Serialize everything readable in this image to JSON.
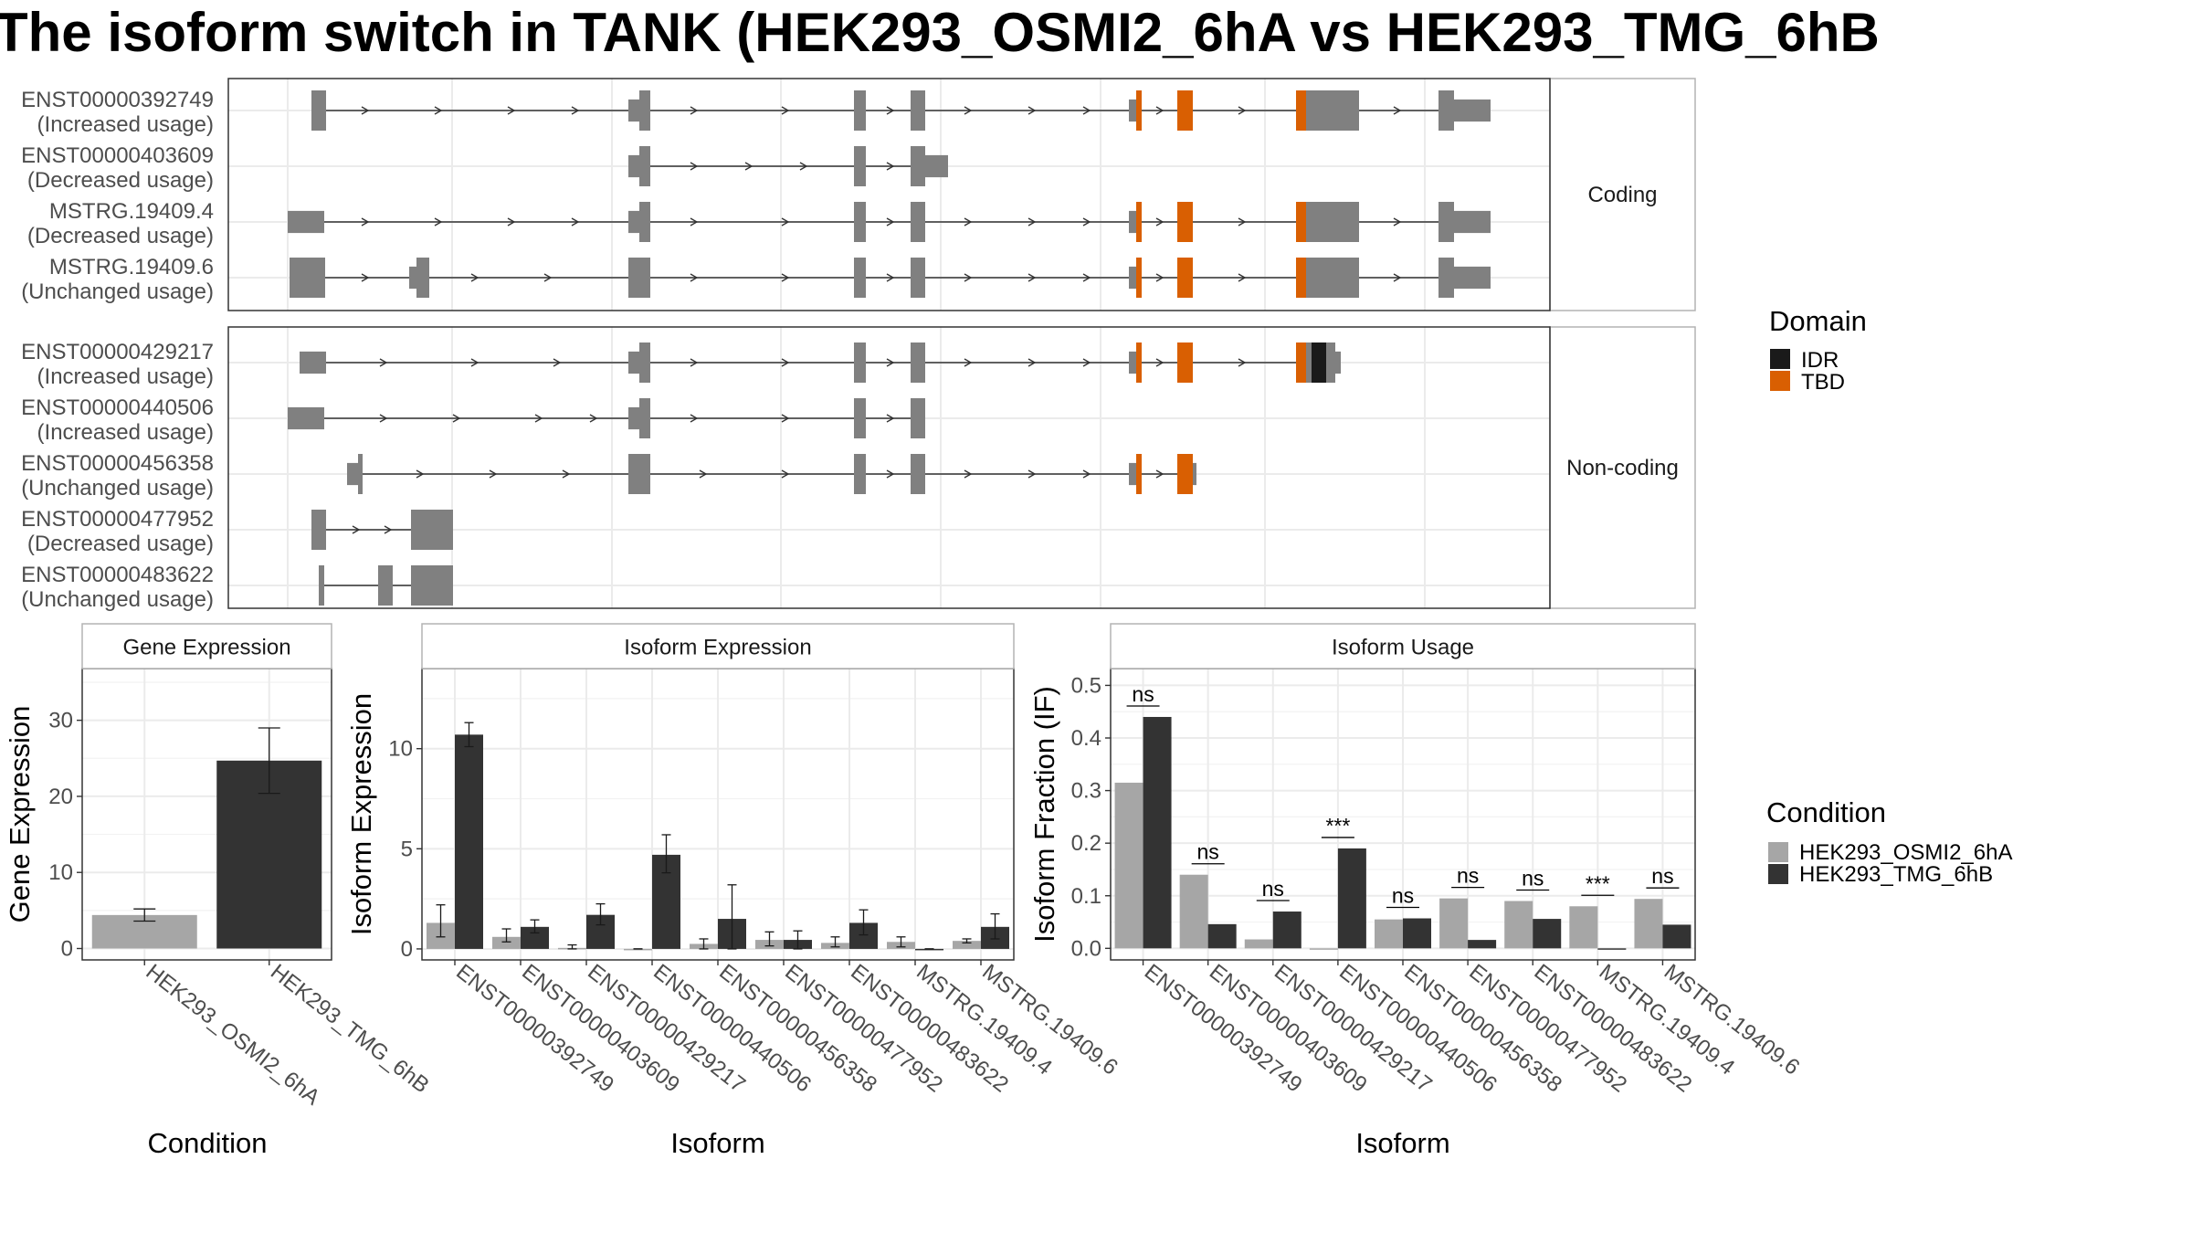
{
  "title": "The isoform switch in TANK (HEK293_OSMI2_6hA vs HEK293_TMG_6hB",
  "colors": {
    "exon": "#808080",
    "idr": "#1a1a1a",
    "tbd": "#d95f02",
    "cond_a": "#a6a6a6",
    "cond_b": "#333333"
  },
  "structure": {
    "facets": [
      "Coding",
      "Non-coding"
    ],
    "transcripts": [
      {
        "id": "ENST00000392749",
        "status": "(Increased usage)",
        "facet": 0
      },
      {
        "id": "ENST00000403609",
        "status": "(Decreased usage)",
        "facet": 0
      },
      {
        "id": "MSTRG.19409.4",
        "status": "(Decreased usage)",
        "facet": 0
      },
      {
        "id": "MSTRG.19409.6",
        "status": "(Unchanged usage)",
        "facet": 0
      },
      {
        "id": "ENST00000429217",
        "status": "(Increased usage)",
        "facet": 1
      },
      {
        "id": "ENST00000440506",
        "status": "(Increased usage)",
        "facet": 1
      },
      {
        "id": "ENST00000456358",
        "status": "(Unchanged usage)",
        "facet": 1
      },
      {
        "id": "ENST00000477952",
        "status": "(Decreased usage)",
        "facet": 1
      },
      {
        "id": "ENST00000483622",
        "status": "(Unchanged usage)",
        "facet": 1
      }
    ],
    "domain_legend": {
      "title": "Domain",
      "items": [
        {
          "label": "IDR",
          "color": "#1a1a1a"
        },
        {
          "label": "TBD",
          "color": "#d95f02"
        }
      ]
    }
  },
  "condition_legend": {
    "title": "Condition",
    "items": [
      {
        "label": "HEK293_OSMI2_6hA",
        "color": "#a6a6a6"
      },
      {
        "label": "HEK293_TMG_6hB",
        "color": "#333333"
      }
    ]
  },
  "chart_data": [
    {
      "type": "bar",
      "strip": "Gene Expression",
      "xlabel": "Condition",
      "ylabel": "Gene Expression",
      "ylim": [
        -1.5,
        36.8
      ],
      "yticks": [
        0,
        10,
        20,
        30
      ],
      "categories": [
        "HEK293_OSMI2_6hA",
        "HEK293_TMG_6hB"
      ],
      "values": [
        4.4,
        24.7
      ],
      "errors": [
        [
          3.6,
          5.2
        ],
        [
          20.4,
          29.0
        ]
      ],
      "grid": true
    },
    {
      "type": "bar",
      "strip": "Isoform Expression",
      "xlabel": "Isoform",
      "ylabel": "Isoform Expression",
      "ylim": [
        -0.55,
        14.0
      ],
      "yticks": [
        0,
        5,
        10
      ],
      "categories": [
        "ENST00000392749",
        "ENST00000403609",
        "ENST00000429217",
        "ENST00000440506",
        "ENST00000456358",
        "ENST00000477952",
        "ENST00000483622",
        "MSTRG.19409.4",
        "MSTRG.19409.6"
      ],
      "series": [
        {
          "name": "HEK293_OSMI2_6hA",
          "values": [
            1.3,
            0.6,
            0.05,
            0.0,
            0.25,
            0.45,
            0.3,
            0.35,
            0.4
          ],
          "errors": [
            [
              0.6,
              2.2
            ],
            [
              0.35,
              1.0
            ],
            [
              0.0,
              0.2
            ],
            [
              0.0,
              0.0
            ],
            [
              0.0,
              0.5
            ],
            [
              0.15,
              0.85
            ],
            [
              0.1,
              0.6
            ],
            [
              0.1,
              0.6
            ],
            [
              0.3,
              0.5
            ]
          ]
        },
        {
          "name": "HEK293_TMG_6hB",
          "values": [
            10.7,
            1.1,
            1.7,
            4.7,
            1.5,
            0.45,
            1.3,
            0.0,
            1.1
          ],
          "errors": [
            [
              10.1,
              11.3
            ],
            [
              0.8,
              1.45
            ],
            [
              1.2,
              2.25
            ],
            [
              3.8,
              5.7
            ],
            [
              0.0,
              3.2
            ],
            [
              0.0,
              0.9
            ],
            [
              0.7,
              1.95
            ],
            [
              0.0,
              0.0
            ],
            [
              0.5,
              1.75
            ]
          ]
        }
      ],
      "grid": true
    },
    {
      "type": "bar",
      "strip": "Isoform Usage",
      "xlabel": "Isoform",
      "ylabel": "Isoform Fraction (IF)",
      "ylim": [
        -0.022,
        0.532
      ],
      "yticks": [
        0.0,
        0.1,
        0.2,
        0.3,
        0.4,
        0.5
      ],
      "categories": [
        "ENST00000392749",
        "ENST00000403609",
        "ENST00000429217",
        "ENST00000440506",
        "ENST00000456358",
        "ENST00000477952",
        "ENST00000483622",
        "MSTRG.19409.4",
        "MSTRG.19409.6"
      ],
      "series": [
        {
          "name": "HEK293_OSMI2_6hA",
          "values": [
            0.315,
            0.14,
            0.017,
            0.0,
            0.055,
            0.095,
            0.09,
            0.08,
            0.094
          ]
        },
        {
          "name": "HEK293_TMG_6hB",
          "values": [
            0.44,
            0.046,
            0.07,
            0.19,
            0.057,
            0.016,
            0.056,
            0.0,
            0.045
          ]
        }
      ],
      "significance": [
        "ns",
        "ns",
        "ns",
        "***",
        "ns",
        "ns",
        "ns",
        "***",
        "ns"
      ],
      "grid": true
    }
  ]
}
